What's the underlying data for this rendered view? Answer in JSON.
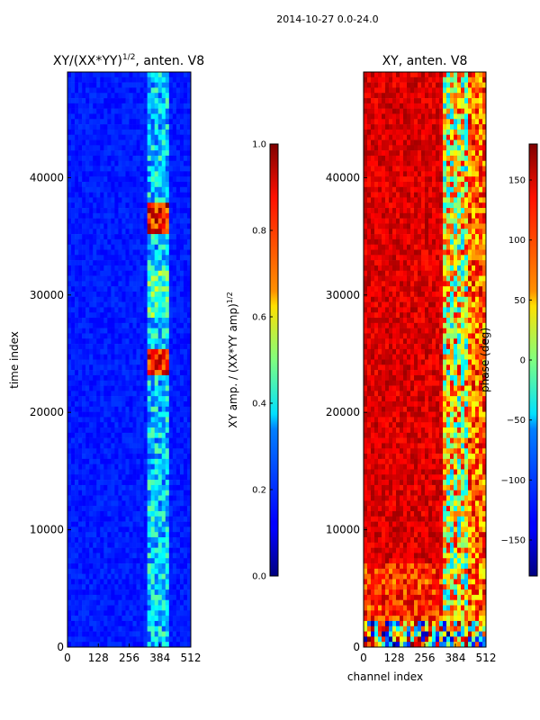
{
  "figure": {
    "suptitle": "2014-10-27 0.0-24.0"
  },
  "chart_data": [
    {
      "type": "heatmap",
      "title_main": "XY/(XX*YY)",
      "title_sup": "1/2",
      "title_rest": ", anten. V8",
      "xlabel": "",
      "ylabel": "time index",
      "x_ticks": [
        0,
        128,
        256,
        384,
        512
      ],
      "y_ticks": [
        0,
        10000,
        20000,
        30000,
        40000
      ],
      "xlim": [
        0,
        512
      ],
      "ylim": [
        0,
        49000
      ],
      "colormap": "jet",
      "colorbar": {
        "label_main": "XY amp. / (XX*YY amp)",
        "label_sup": "1/2",
        "ticks": [
          "0.0",
          "0.2",
          "0.4",
          "0.6",
          "0.8",
          "1.0"
        ],
        "range": [
          0,
          1
        ]
      }
    },
    {
      "type": "heatmap",
      "title_main": "XY, anten. V8",
      "xlabel": "channel index",
      "ylabel": "",
      "x_ticks": [
        0,
        128,
        256,
        384,
        512
      ],
      "y_ticks": [
        0,
        10000,
        20000,
        30000,
        40000
      ],
      "xlim": [
        0,
        512
      ],
      "ylim": [
        0,
        49000
      ],
      "colormap": "jet",
      "colorbar": {
        "label_main": "phase (deg)",
        "ticks": [
          "−150",
          "−100",
          "−50",
          "0",
          "50",
          "100",
          "150"
        ],
        "range": [
          -180,
          180
        ]
      }
    }
  ]
}
